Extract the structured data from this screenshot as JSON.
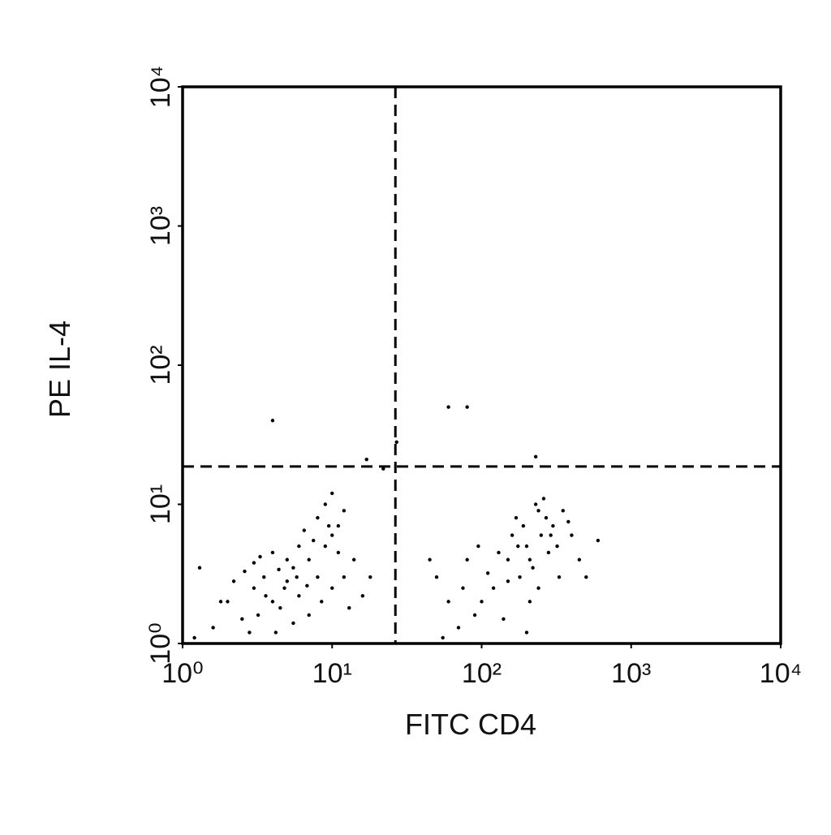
{
  "chart_data": {
    "type": "scatter",
    "xlabel": "FITC CD4",
    "ylabel": "PE IL-4",
    "xscale": "log",
    "yscale": "log",
    "xlim": [
      1,
      10000
    ],
    "ylim": [
      1,
      10000
    ],
    "xticks": [
      {
        "value": 1,
        "label": "10⁰"
      },
      {
        "value": 10,
        "label": "10¹"
      },
      {
        "value": 100,
        "label": "10²"
      },
      {
        "value": 1000,
        "label": "10³"
      },
      {
        "value": 10000,
        "label": "10⁴"
      }
    ],
    "yticks": [
      {
        "value": 1,
        "label": "10⁰"
      },
      {
        "value": 10,
        "label": "10¹"
      },
      {
        "value": 100,
        "label": "10²"
      },
      {
        "value": 1000,
        "label": "10³"
      },
      {
        "value": 10000,
        "label": "10⁴"
      }
    ],
    "quadrant_x": 26.5,
    "quadrant_y": 18.7,
    "color": "#000000",
    "x": [
      2,
      2.5,
      3,
      3.5,
      4,
      4.5,
      5,
      5.5,
      6,
      7,
      8,
      9,
      10,
      8,
      9,
      11,
      12,
      6,
      5,
      4,
      3,
      2.2,
      1.8,
      1.6,
      2.8,
      3.2,
      4.2,
      5.5,
      7,
      8.5,
      10,
      12,
      14,
      6.5,
      7.5,
      9.5,
      3.6,
      4.8,
      5.8,
      6.8,
      2.6,
      3.3,
      4.4,
      13,
      16,
      18,
      1.3,
      1.2,
      10,
      11,
      150,
      200,
      250,
      180,
      220,
      300,
      120,
      100,
      160,
      270,
      350,
      400,
      190,
      240,
      130,
      110,
      90,
      70,
      60,
      50,
      80,
      140,
      210,
      280,
      320,
      450,
      500,
      170,
      230,
      260,
      210,
      175,
      150,
      95,
      75,
      330,
      380,
      290,
      240,
      200,
      600,
      55,
      45,
      4,
      60,
      80,
      230,
      17,
      22,
      27
    ],
    "values": [
      2,
      1.5,
      2.5,
      3,
      2,
      1.8,
      2.8,
      3.5,
      2.2,
      4,
      3,
      5,
      6,
      8,
      10,
      7,
      9,
      5,
      4,
      4.5,
      3.8,
      2.8,
      2,
      1.3,
      1.2,
      1.6,
      1.2,
      1.4,
      1.6,
      2,
      2.5,
      3,
      4,
      6.5,
      5.5,
      7,
      2.2,
      2.5,
      3,
      2.6,
      3.3,
      4.2,
      3.4,
      1.8,
      2.2,
      3,
      3.5,
      1.1,
      12,
      4.5,
      4,
      5,
      6,
      3,
      3.5,
      7,
      2.5,
      2,
      6,
      8,
      9,
      6,
      7,
      9,
      4.5,
      3.2,
      1.6,
      1.3,
      2,
      3,
      4,
      1.5,
      2,
      4.5,
      5,
      4,
      3,
      8,
      10,
      11,
      4,
      5,
      2.8,
      5,
      2.5,
      3,
      7.5,
      6,
      2.5,
      1.2,
      5.5,
      1.1,
      4,
      40,
      50,
      50,
      22,
      21,
      18,
      28
    ]
  }
}
